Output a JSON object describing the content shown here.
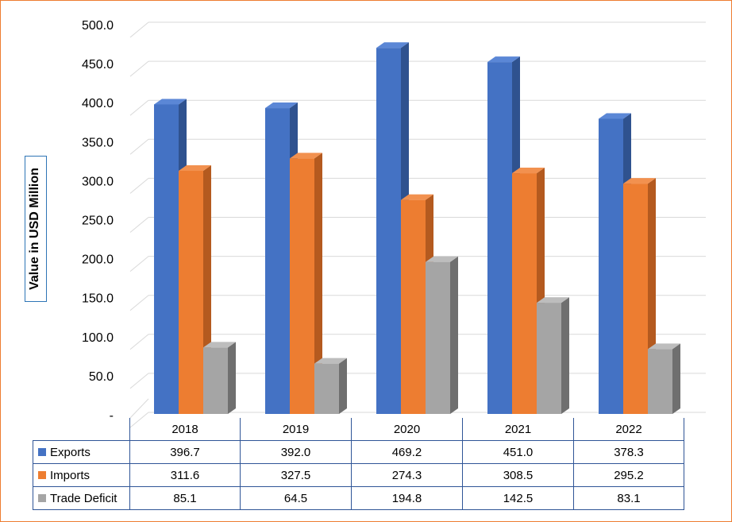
{
  "chart_data": {
    "type": "bar",
    "ylabel": "Value in USD Million",
    "xlabel": "",
    "ylim": [
      0,
      500
    ],
    "yticks": [
      "-",
      "50.0",
      "100.0",
      "150.0",
      "200.0",
      "250.0",
      "300.0",
      "350.0",
      "400.0",
      "450.0",
      "500.0"
    ],
    "ytick_values": [
      0,
      50,
      100,
      150,
      200,
      250,
      300,
      350,
      400,
      450,
      500
    ],
    "categories": [
      "2018",
      "2019",
      "2020",
      "2021",
      "2022"
    ],
    "series": [
      {
        "name": "Exports",
        "values": [
          396.7,
          392.0,
          469.2,
          451.0,
          378.3
        ],
        "labels": [
          "396.7",
          "392.0",
          "469.2",
          "451.0",
          "378.3"
        ],
        "color": "#4472C4",
        "dark": "#2F528F",
        "light": "#5B87D6"
      },
      {
        "name": "Imports",
        "values": [
          311.6,
          327.5,
          274.3,
          308.5,
          295.2
        ],
        "labels": [
          "311.6",
          "327.5",
          "274.3",
          "308.5",
          "295.2"
        ],
        "color": "#ED7D31",
        "dark": "#B45A1F",
        "light": "#F2914F"
      },
      {
        "name": "Trade Deficit",
        "values": [
          85.1,
          64.5,
          194.8,
          142.5,
          83.1
        ],
        "labels": [
          "85.1",
          "64.5",
          "194.8",
          "142.5",
          "83.1"
        ],
        "color": "#A5A5A5",
        "dark": "#6F6F6F",
        "light": "#BDBDBD"
      }
    ],
    "grid": true,
    "legend": "data-table"
  }
}
